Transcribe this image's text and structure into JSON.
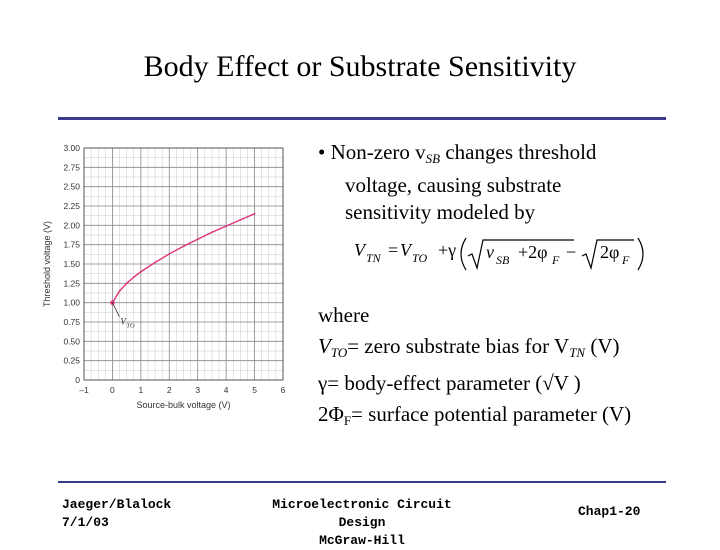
{
  "slide": {
    "title": "Body Effect or Substrate Sensitivity",
    "bullet": {
      "prefix": "• Non-zero v",
      "sub": "SB",
      "suffix": " changes threshold",
      "line2": "voltage, causing substrate",
      "line3": "sensitivity modeled by"
    },
    "formula": {
      "lhs": "V",
      "lhs_sub": "TN",
      "eq": "=",
      "vto": "V",
      "vto_sub": "TO",
      "plus_gamma": "+γ",
      "v": "v",
      "v_sub": "SB",
      "two_phi": "+2φ",
      "phi_sub": "F",
      "minus": "−",
      "two_phi2": "2φ",
      "phi_sub2": "F"
    },
    "defs": {
      "where": "where",
      "vto": "V",
      "vto_sub": "TO",
      "vto_text": "= zero substrate bias for V",
      "vtn_sub": "TN",
      "vto_unit": " (V)",
      "gamma_text": "γ= body-effect parameter (",
      "gamma_root": "√V",
      "gamma_close": " )",
      "phi_text": "2Φ",
      "phi_sub": "F",
      "phi_rest": "= surface potential parameter (V)"
    },
    "footer": {
      "left_line1": "Jaeger/Blalock",
      "left_line2": "7/1/03",
      "center_line1": "Microelectronic Circuit Design",
      "center_line2": "McGraw-Hill",
      "right": "Chap1-20"
    }
  },
  "chart_data": {
    "type": "line",
    "title": "",
    "xlabel": "Source-bulk voltage (V)",
    "ylabel": "Threshold voltage (V)",
    "xlim": [
      -1,
      6
    ],
    "ylim": [
      0,
      3.0
    ],
    "xticks": [
      "–1",
      "0",
      "1",
      "2",
      "3",
      "4",
      "5",
      "6"
    ],
    "yticks": [
      "0",
      "0.25",
      "0.50",
      "0.75",
      "1.00",
      "1.25",
      "1.50",
      "1.75",
      "2.00",
      "2.25",
      "2.50",
      "2.75",
      "3.00"
    ],
    "annotation": "V",
    "annotation_sub": "TO",
    "annotation_point": [
      0,
      1.0
    ],
    "series": [
      {
        "name": "VTN",
        "color": "#e0307a",
        "x": [
          0,
          0.25,
          0.5,
          0.75,
          1.0,
          1.5,
          2.0,
          2.5,
          3.0,
          3.5,
          4.0,
          4.5,
          5.0
        ],
        "y": [
          1.0,
          1.15,
          1.25,
          1.33,
          1.4,
          1.52,
          1.63,
          1.73,
          1.82,
          1.91,
          1.99,
          2.07,
          2.15
        ]
      }
    ]
  }
}
